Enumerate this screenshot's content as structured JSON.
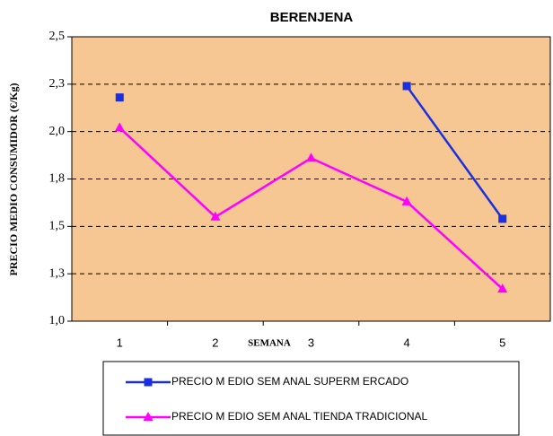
{
  "chart_data": {
    "type": "line",
    "title": "BERENJENA",
    "x_label": "SEMANA",
    "y_label": "PRECIO MEDIO CONSUMIDOR  (€/Kg)",
    "categories": [
      "1",
      "2",
      "3",
      "4",
      "5"
    ],
    "series": [
      {
        "name": "PRECIO M EDIO SEM ANAL SUPERM ERCADO",
        "color": "#1a2fe0",
        "marker": "square",
        "values": [
          2.18,
          null,
          null,
          2.24,
          1.54
        ]
      },
      {
        "name": "PRECIO M EDIO SEM ANAL TIENDA TRADICIONAL",
        "color": "#ff00ff",
        "marker": "triangle",
        "values": [
          2.02,
          1.55,
          1.86,
          1.63,
          1.17
        ]
      }
    ],
    "ylim": [
      1.0,
      2.5
    ],
    "yticks": [
      {
        "value": 1.0,
        "label": "1,0"
      },
      {
        "value": 1.25,
        "label": "1,3"
      },
      {
        "value": 1.5,
        "label": "1,5"
      },
      {
        "value": 1.75,
        "label": "1,8"
      },
      {
        "value": 2.0,
        "label": "2,0"
      },
      {
        "value": 2.25,
        "label": "2,3"
      },
      {
        "value": 2.5,
        "label": "2,5"
      }
    ],
    "grid": true,
    "background": "#f6c792",
    "legend": "bottom"
  }
}
